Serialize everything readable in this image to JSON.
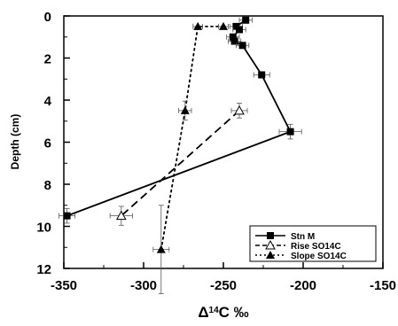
{
  "chart_data": {
    "type": "line",
    "title": "",
    "xlabel_prefix": "Δ",
    "xlabel_sup": "14",
    "xlabel_suffix": "C ‰",
    "ylabel": "Depth   (cm)",
    "xlim": [
      -350,
      -150
    ],
    "ylim": [
      0,
      12
    ],
    "y_inverted": true,
    "x_ticks": [
      -350,
      -300,
      -250,
      -200,
      -150
    ],
    "y_ticks": [
      0,
      2,
      4,
      6,
      8,
      10,
      12
    ],
    "x_tick_labels": [
      "-350",
      "-300",
      "-250",
      "-200",
      "-150"
    ],
    "y_tick_labels": [
      "0",
      "2",
      "4",
      "6",
      "8",
      "10",
      "12"
    ],
    "grid": false,
    "legend_position": "bottom-right",
    "series": [
      {
        "name": "Stn  M",
        "line_style": "solid",
        "marker": "filled-square",
        "color": "#000000",
        "points": [
          {
            "x": -236,
            "y": 0.2,
            "xerr": 4
          },
          {
            "x": -242,
            "y": 0.5,
            "xerr": 4
          },
          {
            "x": -240,
            "y": 0.65,
            "xerr": 4
          },
          {
            "x": -244,
            "y": 1.0,
            "xerr": 4
          },
          {
            "x": -243,
            "y": 1.2,
            "xerr": 4
          },
          {
            "x": -238,
            "y": 1.4,
            "xerr": 4
          },
          {
            "x": -226,
            "y": 2.8,
            "xerr": 5
          },
          {
            "x": -208,
            "y": 5.5,
            "xerr": 7,
            "yerr": 0.35
          },
          {
            "x": -348,
            "y": 9.5,
            "xerr": 5,
            "yerr": 0.35
          }
        ]
      },
      {
        "name": "Rise  SO14C",
        "line_style": "dashed",
        "marker": "open-triangle",
        "color": "#000000",
        "points": [
          {
            "x": -240,
            "y": 4.5,
            "xerr": 5,
            "yerr": 0.35
          },
          {
            "x": -314,
            "y": 9.5,
            "xerr": 7,
            "yerr": 0.45
          }
        ]
      },
      {
        "name": "Slope   SO14C",
        "line_style": "dotted",
        "marker": "filled-triangle",
        "color": "#000000",
        "points": [
          {
            "x": -250,
            "y": 0.5,
            "xerr": 3
          },
          {
            "x": -266,
            "y": 0.5,
            "xerr": 3
          },
          {
            "x": -274,
            "y": 4.5,
            "xerr": 4,
            "yerr": 0.45
          },
          {
            "x": -289,
            "y": 11.1,
            "xerr": 5,
            "yerr": 2.1
          }
        ]
      }
    ]
  }
}
